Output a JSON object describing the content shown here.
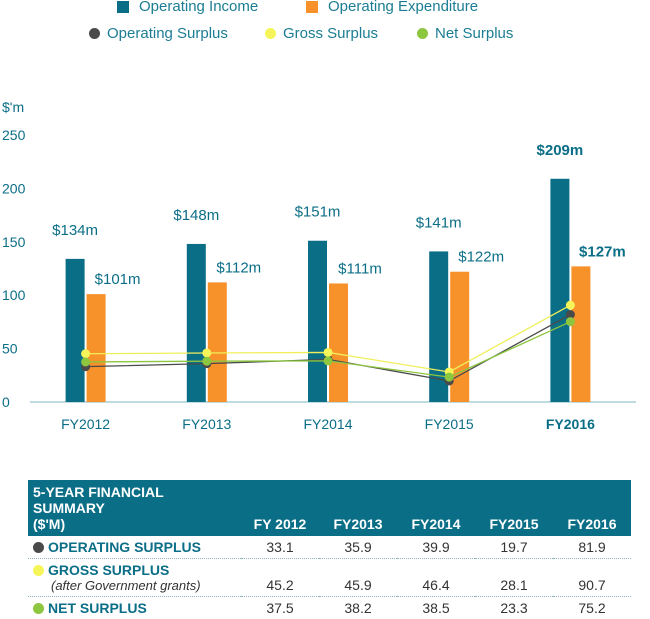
{
  "legend": {
    "operating_income": {
      "label": "Operating Income",
      "color": "#0b6e87"
    },
    "operating_expenditure": {
      "label": "Operating Expenditure",
      "color": "#f7922a"
    },
    "operating_surplus": {
      "label": "Operating Surplus",
      "color": "#4a4a4a"
    },
    "gross_surplus": {
      "label": "Gross Surplus",
      "color": "#f5f55a"
    },
    "net_surplus": {
      "label": "Net Surplus",
      "color": "#8dc63f"
    }
  },
  "chart_data": {
    "type": "bar",
    "ylabel": "$'m",
    "ylim": [
      0,
      250
    ],
    "yticks": [
      "0",
      "50",
      "100",
      "150",
      "200",
      "250"
    ],
    "categories": [
      "FY2012",
      "FY2013",
      "FY2014",
      "FY2015",
      "FY2016"
    ],
    "bold_category": "FY2016",
    "series": [
      {
        "name": "Operating Income",
        "values": [
          134,
          148,
          151,
          141,
          209
        ],
        "labels": [
          "$134m",
          "$148m",
          "$151m",
          "$141m",
          "$209m"
        ]
      },
      {
        "name": "Operating Expenditure",
        "values": [
          101,
          112,
          111,
          122,
          127
        ],
        "labels": [
          "$101m",
          "$112m",
          "$111m",
          "$122m",
          "$127m"
        ]
      }
    ],
    "lines": [
      {
        "name": "Operating Surplus",
        "values": [
          33.1,
          35.9,
          39.9,
          19.7,
          81.9
        ]
      },
      {
        "name": "Gross Surplus",
        "values": [
          45.2,
          45.9,
          46.4,
          28.1,
          90.7
        ]
      },
      {
        "name": "Net Surplus",
        "values": [
          37.5,
          38.2,
          38.5,
          23.3,
          75.2
        ]
      }
    ]
  },
  "table": {
    "title": "5-YEAR FINANCIAL SUMMARY",
    "subtitle": "($'M)",
    "columns": [
      "FY 2012",
      "FY2013",
      "FY2014",
      "FY2015",
      "FY2016"
    ],
    "rows": [
      {
        "label": "OPERATING SURPLUS",
        "sublabel": "",
        "values": [
          "33.1",
          "35.9",
          "39.9",
          "19.7",
          "81.9"
        ]
      },
      {
        "label": "GROSS SURPLUS",
        "sublabel": "(after Government grants)",
        "values": [
          "45.2",
          "45.9",
          "46.4",
          "28.1",
          "90.7"
        ]
      },
      {
        "label": "NET SURPLUS",
        "sublabel": "",
        "values": [
          "37.5",
          "38.2",
          "38.5",
          "23.3",
          "75.2"
        ]
      }
    ]
  }
}
